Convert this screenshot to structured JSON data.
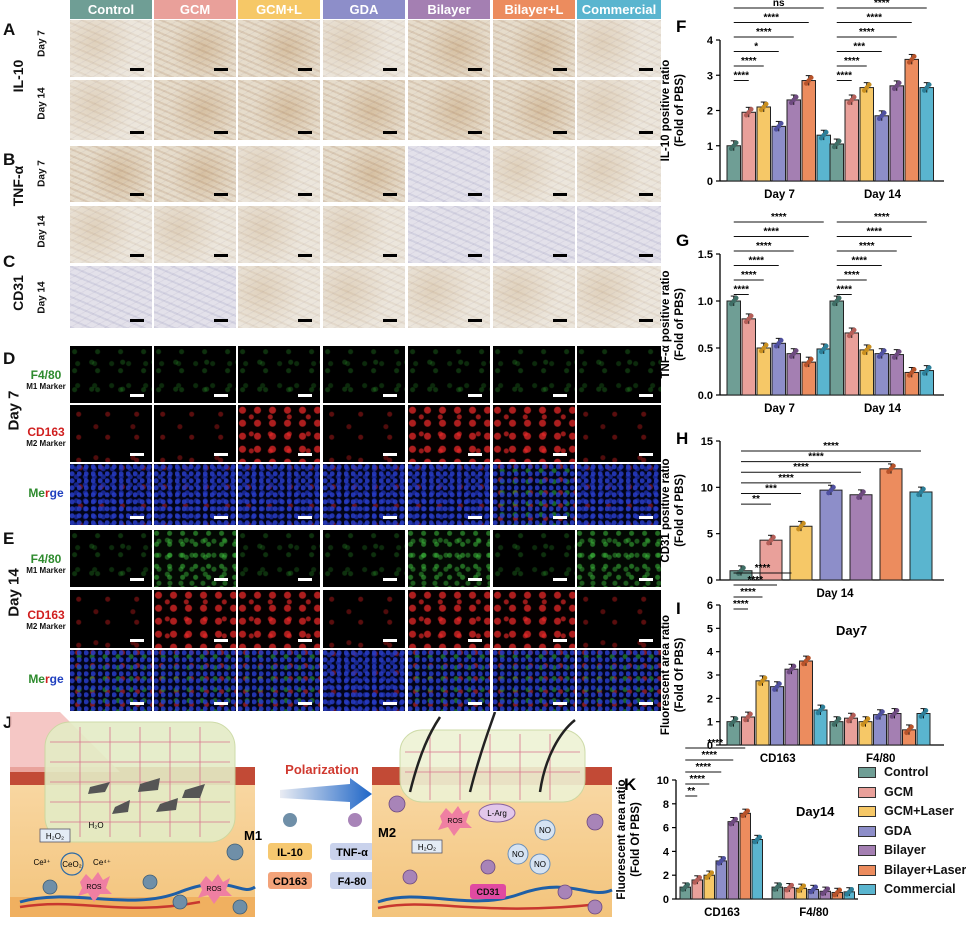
{
  "groups": [
    {
      "name": "Control",
      "color": "#6f9e95"
    },
    {
      "name": "GCM",
      "color": "#e9a09a"
    },
    {
      "name": "GCM+L",
      "color": "#f6c867"
    },
    {
      "name": "GDA",
      "color": "#8d8ec9"
    },
    {
      "name": "Bilayer",
      "color": "#a47fb2"
    },
    {
      "name": "Bilayer+L",
      "color": "#ec8c5e"
    },
    {
      "name": "Commercial",
      "color": "#5ab5cf"
    }
  ],
  "panels": {
    "A": {
      "letter": "A",
      "label": "IL-10",
      "rows": [
        "Day 7",
        "Day 14"
      ]
    },
    "B": {
      "letter": "B",
      "label": "TNF-α",
      "rows": [
        "Day 7",
        "Day 14"
      ]
    },
    "C": {
      "letter": "C",
      "label": "CD31",
      "rows": [
        "Day 14"
      ]
    },
    "D": {
      "letter": "D",
      "day": "Day 7"
    },
    "E": {
      "letter": "E",
      "day": "Day 14"
    },
    "J": {
      "letter": "J"
    }
  },
  "fluor_rows": [
    {
      "marker": "F4/80",
      "sub": "M1 Marker",
      "color": "#2e8b2e"
    },
    {
      "marker": "CD163",
      "sub": "M2 Marker",
      "color": "#d01f1f"
    },
    {
      "marker_merge_parts": [
        "Me",
        "r",
        "ge"
      ]
    }
  ],
  "schematic": {
    "polarization": "Polarization",
    "m1": "M1",
    "m2": "M2",
    "h2o2": "H₂O₂",
    "h2o": "H₂O",
    "ce3": "Ce³⁺",
    "ceo2": "CeO₂",
    "ce4": "Ce⁴⁺",
    "ros": "ROS",
    "larg": "L-Arg",
    "no": "NO",
    "cd31": "CD31",
    "il10": "IL-10",
    "tnfa": "TNF-α",
    "cd163": "CD163",
    "f480": "F4-80"
  },
  "legend": [
    "Control",
    "GCM",
    "GCM+Laser",
    "GDA",
    "Bilayer",
    "Bilayer+Laser",
    "Commercial"
  ],
  "chart_data": [
    {
      "panel": "F",
      "type": "bar",
      "ylabel": "IL-10 positive ratio",
      "ylabel2": "(Fold of PBS)",
      "categories": [
        "Day 7",
        "Day 14"
      ],
      "ylim": [
        0,
        4
      ],
      "yticks": [
        0,
        1,
        2,
        3,
        4
      ],
      "values": [
        [
          1.0,
          1.95,
          2.1,
          1.55,
          2.3,
          2.85,
          1.3
        ],
        [
          1.05,
          2.3,
          2.65,
          1.85,
          2.7,
          3.45,
          2.65
        ]
      ],
      "sig": [
        [
          "****",
          "****",
          "*",
          "****",
          "****",
          "ns"
        ],
        [
          "****",
          "****",
          "***",
          "****",
          "****",
          "****"
        ]
      ]
    },
    {
      "panel": "G",
      "type": "bar",
      "ylabel": "TNF-α positive ratio",
      "ylabel2": "(Fold of PBS)",
      "categories": [
        "Day 7",
        "Day 14"
      ],
      "ylim": [
        0,
        1.5
      ],
      "yticks": [
        0.0,
        0.5,
        1.0,
        1.5
      ],
      "values": [
        [
          1.0,
          0.81,
          0.5,
          0.55,
          0.44,
          0.35,
          0.49
        ],
        [
          1.0,
          0.66,
          0.48,
          0.44,
          0.43,
          0.24,
          0.26
        ]
      ],
      "sig": [
        [
          "****",
          "****",
          "****",
          "****",
          "****",
          "****"
        ],
        [
          "****",
          "****",
          "****",
          "****",
          "****",
          "****"
        ]
      ]
    },
    {
      "panel": "H",
      "type": "bar",
      "ylabel": "CD31 positive ratio",
      "ylabel2": "(Fold of PBS)",
      "categories": [
        "Day 14"
      ],
      "ylim": [
        0,
        15
      ],
      "yticks": [
        0,
        5,
        10,
        15
      ],
      "values": [
        [
          1.0,
          4.3,
          5.8,
          9.7,
          9.2,
          12.0,
          9.5
        ]
      ],
      "sig": [
        [
          "**",
          "***",
          "****",
          "****",
          "****",
          "****"
        ]
      ]
    },
    {
      "panel": "I",
      "type": "bar",
      "ylabel": "Fluorescent area ratio",
      "ylabel2": "(Fold Of PBS)",
      "title": "Day7",
      "categories": [
        "CD163",
        "F4/80"
      ],
      "ylim": [
        0,
        6
      ],
      "yticks": [
        0,
        1,
        2,
        3,
        4,
        5,
        6
      ],
      "values": [
        [
          1.0,
          1.2,
          2.75,
          2.5,
          3.25,
          3.6,
          1.5
        ],
        [
          1.0,
          1.15,
          1.0,
          1.3,
          1.35,
          0.65,
          1.35
        ]
      ],
      "sig": [
        [
          "****",
          "****",
          "****",
          "****"
        ]
      ]
    },
    {
      "panel": "K",
      "type": "bar",
      "ylabel": "Fluorescent area ratio",
      "ylabel2": "(Fold Of PBS)",
      "title": "Day14",
      "categories": [
        "CD163",
        "F4/80"
      ],
      "ylim": [
        0,
        10
      ],
      "yticks": [
        0,
        2,
        4,
        6,
        8,
        10
      ],
      "values": [
        [
          1.0,
          1.6,
          2.0,
          3.2,
          6.5,
          7.2,
          5.0
        ],
        [
          1.0,
          0.95,
          0.9,
          0.8,
          0.65,
          0.55,
          0.6
        ]
      ],
      "sig": [
        [
          "**",
          "****",
          "****",
          "****",
          "****"
        ]
      ]
    }
  ]
}
